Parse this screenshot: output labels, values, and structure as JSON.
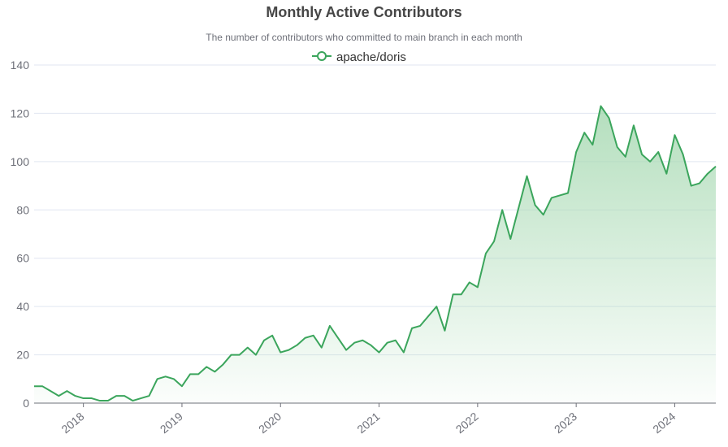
{
  "chart_data": {
    "type": "area",
    "title": "Monthly Active Contributors",
    "subtitle": "The number of contributors who committed to main branch in each month",
    "xlabel": "",
    "ylabel": "",
    "ylim": [
      0,
      140
    ],
    "yticks": [
      "0",
      "20",
      "40",
      "60",
      "80",
      "100",
      "120",
      "140"
    ],
    "xticks": [
      {
        "label": "2018",
        "date": "2018-01"
      },
      {
        "label": "2019",
        "date": "2019-01"
      },
      {
        "label": "2020",
        "date": "2020-01"
      },
      {
        "label": "2021",
        "date": "2021-01"
      },
      {
        "label": "2022",
        "date": "2022-01"
      },
      {
        "label": "2023",
        "date": "2023-01"
      },
      {
        "label": "2024",
        "date": "2024-01"
      }
    ],
    "x_range": [
      "2017-07",
      "2024-06"
    ],
    "grid": true,
    "legend_position": "top-center",
    "colors": {
      "line": "#3ba55c",
      "area_top": "#a7d9b2",
      "grid": "#e0e6f1",
      "axis": "#6e7079"
    },
    "series": [
      {
        "name": "apache/doris",
        "x": [
          "2017-07",
          "2017-08",
          "2017-09",
          "2017-10",
          "2017-11",
          "2017-12",
          "2018-01",
          "2018-02",
          "2018-03",
          "2018-04",
          "2018-05",
          "2018-06",
          "2018-07",
          "2018-08",
          "2018-09",
          "2018-10",
          "2018-11",
          "2018-12",
          "2019-01",
          "2019-02",
          "2019-03",
          "2019-04",
          "2019-05",
          "2019-06",
          "2019-07",
          "2019-08",
          "2019-09",
          "2019-10",
          "2019-11",
          "2019-12",
          "2020-01",
          "2020-02",
          "2020-03",
          "2020-04",
          "2020-05",
          "2020-06",
          "2020-07",
          "2020-08",
          "2020-09",
          "2020-10",
          "2020-11",
          "2020-12",
          "2021-01",
          "2021-02",
          "2021-03",
          "2021-04",
          "2021-05",
          "2021-06",
          "2021-07",
          "2021-08",
          "2021-09",
          "2021-10",
          "2021-11",
          "2021-12",
          "2022-01",
          "2022-02",
          "2022-03",
          "2022-04",
          "2022-05",
          "2022-06",
          "2022-07",
          "2022-08",
          "2022-09",
          "2022-10",
          "2022-11",
          "2022-12",
          "2023-01",
          "2023-02",
          "2023-03",
          "2023-04",
          "2023-05",
          "2023-06",
          "2023-07",
          "2023-08",
          "2023-09",
          "2023-10",
          "2023-11",
          "2023-12",
          "2024-01",
          "2024-02",
          "2024-03",
          "2024-04",
          "2024-05",
          "2024-06"
        ],
        "values": [
          7,
          7,
          5,
          3,
          5,
          3,
          2,
          2,
          1,
          1,
          3,
          3,
          1,
          2,
          3,
          10,
          11,
          10,
          7,
          12,
          12,
          15,
          13,
          16,
          20,
          20,
          23,
          20,
          26,
          28,
          21,
          22,
          24,
          27,
          28,
          23,
          32,
          27,
          22,
          25,
          26,
          24,
          21,
          25,
          26,
          21,
          31,
          32,
          36,
          40,
          30,
          45,
          45,
          50,
          48,
          62,
          67,
          80,
          68,
          81,
          94,
          82,
          78,
          85,
          86,
          87,
          104,
          112,
          107,
          123,
          118,
          106,
          102,
          115,
          103,
          100,
          104,
          95,
          111,
          103,
          90,
          91,
          95,
          98
        ]
      }
    ]
  }
}
